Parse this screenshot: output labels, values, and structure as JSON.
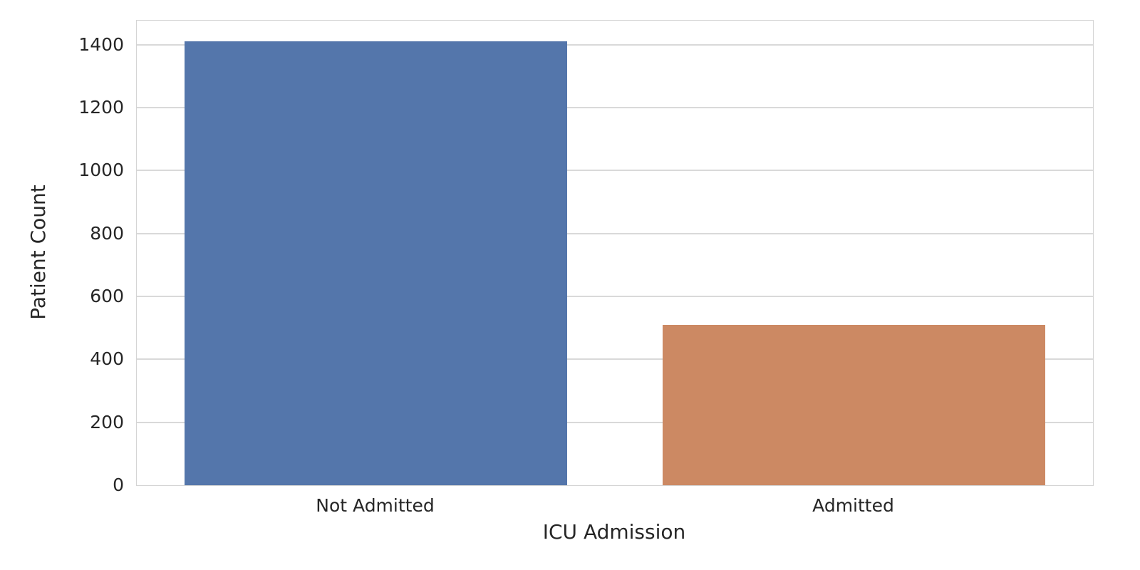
{
  "chart_data": {
    "type": "bar",
    "categories": [
      "Not Admitted",
      "Admitted"
    ],
    "values": [
      1410,
      510
    ],
    "title": "",
    "xlabel": "ICU Admission",
    "ylabel": "Patient Count",
    "ylim": [
      0,
      1476
    ],
    "yticks": [
      0,
      200,
      400,
      600,
      800,
      1000,
      1200,
      1400
    ],
    "grid": "horizontal-only",
    "legend": "none",
    "bar_width_fraction": 0.8,
    "bar_colors": [
      "#5476AB",
      "#CC8963"
    ],
    "grid_color": "#d9d9d9",
    "spine_color": "#d4d4d4",
    "text_color": "#262626",
    "background": "#ffffff"
  }
}
